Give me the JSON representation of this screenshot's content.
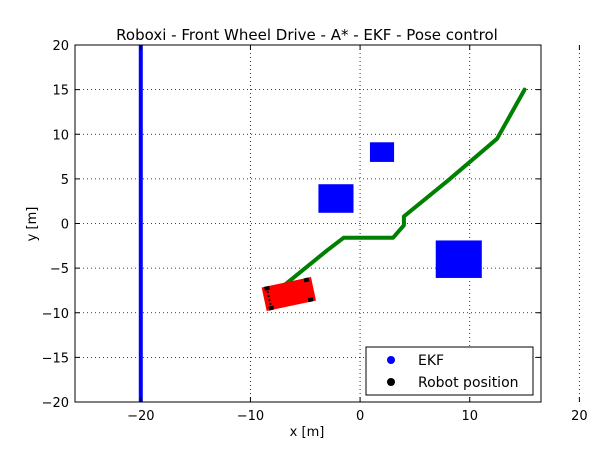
{
  "chart_data": {
    "type": "scatter",
    "title": "Roboxi - Front Wheel Drive - A* - EKF - Pose control",
    "xlabel": "x [m]",
    "ylabel": "y [m]",
    "xlim": [
      -26,
      16.5
    ],
    "ylim": [
      -20,
      20
    ],
    "xticks": [
      -20,
      -10,
      0,
      10,
      20
    ],
    "yticks": [
      -20,
      -15,
      -10,
      -5,
      0,
      5,
      10,
      15,
      20
    ],
    "xtick_labels": [
      "−20",
      "−10",
      "0",
      "10",
      "20"
    ],
    "ytick_labels": [
      "−20",
      "−15",
      "−10",
      "−5",
      "0",
      "5",
      "10",
      "15",
      "20"
    ],
    "grid": true,
    "legend_position": "lower-right",
    "legend": [
      {
        "label": "EKF",
        "color": "#0000ff"
      },
      {
        "label": "Robot position",
        "color": "#000000"
      }
    ],
    "boundary": {
      "color": "#0000ff",
      "x_lines": [
        -20,
        20
      ],
      "y_range": [
        -20,
        20
      ]
    },
    "obstacles": {
      "color": "#0000ff",
      "items": [
        {
          "center": [
            2.0,
            8.0
          ],
          "size": 2.2
        },
        {
          "center": [
            -2.2,
            2.8
          ],
          "size": 3.2
        },
        {
          "center": [
            9.0,
            -4.0
          ],
          "size": 4.2
        }
      ]
    },
    "path": {
      "color": "#008000",
      "points": [
        [
          -7.5,
          -7.5
        ],
        [
          -3.0,
          -3.0
        ],
        [
          -1.5,
          -1.6
        ],
        [
          3.0,
          -1.6
        ],
        [
          4.0,
          -0.2
        ],
        [
          4.0,
          0.8
        ],
        [
          8.0,
          4.8
        ],
        [
          12.5,
          9.5
        ],
        [
          15.0,
          15.0
        ]
      ]
    },
    "robot": {
      "color": "#ff0000",
      "center": [
        -6.5,
        -7.9
      ],
      "length": 4.6,
      "width": 2.2,
      "heading_deg": 12,
      "wheel_color": "#000000"
    }
  }
}
